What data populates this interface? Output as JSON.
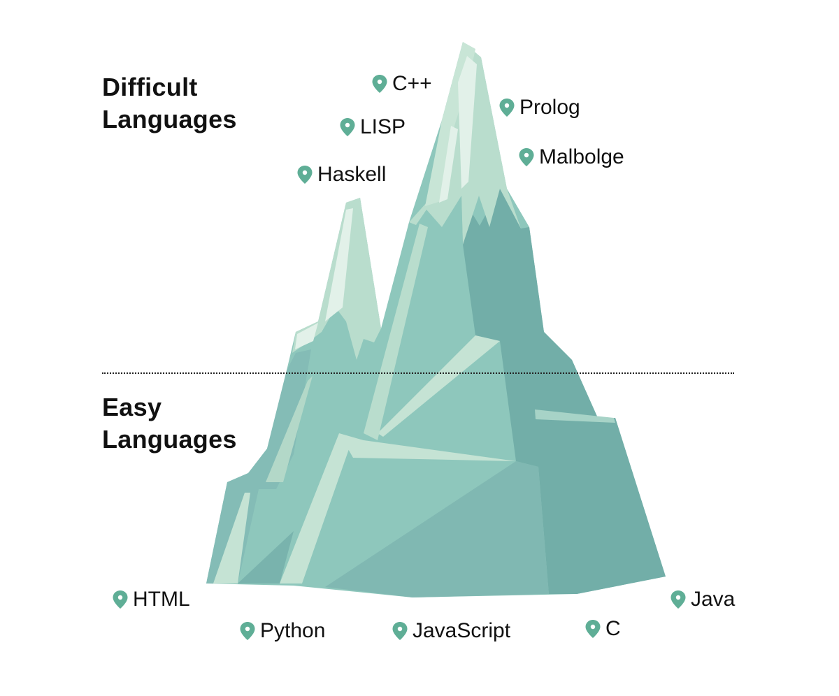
{
  "headings": {
    "difficult": [
      "Difficult",
      "Languages"
    ],
    "easy": [
      "Easy",
      "Languages"
    ]
  },
  "difficult_languages": [
    "C++",
    "LISP",
    "Haskell",
    "Prolog",
    "Malbolge"
  ],
  "easy_languages": [
    "HTML",
    "Python",
    "JavaScript",
    "C",
    "Java"
  ],
  "colors": {
    "pin": "#5fae96",
    "ice_light": "#c5e3d4",
    "ice_mid": "#8ec7bc",
    "ice_dark": "#72aea8"
  }
}
